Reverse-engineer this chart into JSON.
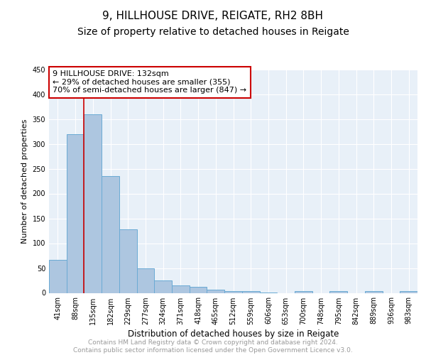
{
  "title": "9, HILLHOUSE DRIVE, REIGATE, RH2 8BH",
  "subtitle": "Size of property relative to detached houses in Reigate",
  "xlabel": "Distribution of detached houses by size in Reigate",
  "ylabel": "Number of detached properties",
  "bar_color": "#adc6e0",
  "bar_edge_color": "#6aaad4",
  "background_color": "#e8f0f8",
  "grid_color": "#ffffff",
  "bins": [
    "41sqm",
    "88sqm",
    "135sqm",
    "182sqm",
    "229sqm",
    "277sqm",
    "324sqm",
    "371sqm",
    "418sqm",
    "465sqm",
    "512sqm",
    "559sqm",
    "606sqm",
    "653sqm",
    "700sqm",
    "748sqm",
    "795sqm",
    "842sqm",
    "889sqm",
    "936sqm",
    "983sqm"
  ],
  "values": [
    67,
    320,
    360,
    235,
    128,
    50,
    25,
    15,
    12,
    7,
    4,
    4,
    1,
    0,
    4,
    0,
    3,
    0,
    4,
    0,
    4
  ],
  "vline_x_index": 2,
  "vline_color": "#cc0000",
  "annotation_text": "9 HILLHOUSE DRIVE: 132sqm\n← 29% of detached houses are smaller (355)\n70% of semi-detached houses are larger (847) →",
  "annotation_box_color": "#ffffff",
  "annotation_border_color": "#cc0000",
  "ylim": [
    0,
    450
  ],
  "yticks": [
    0,
    50,
    100,
    150,
    200,
    250,
    300,
    350,
    400,
    450
  ],
  "footer_text": "Contains HM Land Registry data © Crown copyright and database right 2024.\nContains public sector information licensed under the Open Government Licence v3.0.",
  "footer_color": "#999999",
  "title_fontsize": 11,
  "subtitle_fontsize": 10,
  "xlabel_fontsize": 8.5,
  "ylabel_fontsize": 8,
  "tick_fontsize": 7,
  "annotation_fontsize": 8,
  "footer_fontsize": 6.5
}
